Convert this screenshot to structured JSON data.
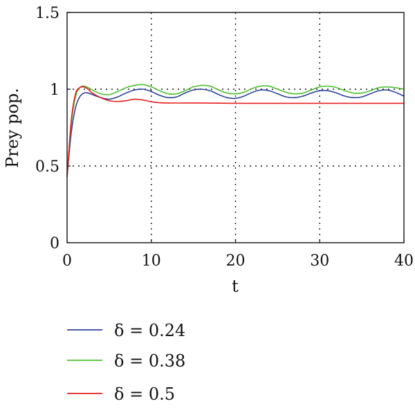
{
  "chart_data": {
    "type": "line",
    "title": "",
    "xlabel": "t",
    "ylabel": "Prey pop.",
    "xlim": [
      0,
      40
    ],
    "ylim": [
      0,
      1.5
    ],
    "xticks": [
      0,
      10,
      20,
      30,
      40
    ],
    "yticks": [
      0,
      0.5,
      1,
      1.5
    ],
    "xtick_labels": [
      "0",
      "10",
      "20",
      "30",
      "40"
    ],
    "ytick_labels": [
      "0",
      "0.5",
      "1",
      "1.5"
    ],
    "grid": true,
    "legend_position": "bottom",
    "series": [
      {
        "name": "δ = 0.24",
        "color": "#2b3f99",
        "x": [
          0,
          0.5,
          1,
          1.5,
          2,
          2.5,
          3,
          4,
          5,
          6,
          7,
          8,
          9,
          10,
          11,
          12,
          13,
          14,
          15,
          16,
          17,
          18,
          19,
          20,
          21,
          22,
          23,
          24,
          25,
          26,
          27,
          28,
          29,
          30,
          31,
          32,
          33,
          34,
          35,
          36,
          37,
          38,
          39,
          40
        ],
        "y": [
          0.43,
          0.72,
          0.88,
          0.95,
          0.975,
          0.975,
          0.965,
          0.945,
          0.935,
          0.95,
          0.975,
          0.995,
          1.0,
          0.985,
          0.96,
          0.945,
          0.95,
          0.975,
          0.995,
          1.0,
          0.99,
          0.965,
          0.945,
          0.94,
          0.955,
          0.98,
          0.995,
          0.99,
          0.97,
          0.95,
          0.945,
          0.955,
          0.975,
          0.99,
          0.99,
          0.975,
          0.955,
          0.945,
          0.95,
          0.97,
          0.99,
          0.995,
          0.98,
          0.955
        ]
      },
      {
        "name": "δ = 0.38",
        "color": "#4cbf2e",
        "x": [
          0,
          0.5,
          1,
          1.5,
          2,
          2.5,
          3,
          4,
          5,
          6,
          7,
          8,
          9,
          10,
          11,
          12,
          13,
          14,
          15,
          16,
          17,
          18,
          19,
          20,
          21,
          22,
          23,
          24,
          25,
          26,
          27,
          28,
          29,
          30,
          31,
          32,
          33,
          34,
          35,
          36,
          37,
          38,
          39,
          40
        ],
        "y": [
          0.43,
          0.78,
          0.95,
          1.01,
          1.02,
          1.01,
          0.995,
          0.97,
          0.965,
          0.985,
          1.01,
          1.025,
          1.03,
          1.015,
          0.99,
          0.97,
          0.97,
          0.99,
          1.015,
          1.025,
          1.02,
          0.995,
          0.975,
          0.97,
          0.98,
          1.005,
          1.02,
          1.02,
          1.0,
          0.98,
          0.97,
          0.975,
          0.995,
          1.015,
          1.02,
          1.01,
          0.99,
          0.975,
          0.975,
          0.99,
          1.01,
          1.015,
          1.01,
          1.0
        ]
      },
      {
        "name": "δ = 0.5",
        "color": "#e61e1e",
        "x": [
          0,
          0.5,
          1,
          1.5,
          2,
          2.5,
          3,
          4,
          5,
          6,
          7,
          8,
          9,
          10,
          11,
          12,
          14,
          16,
          18,
          20,
          22,
          24,
          26,
          28,
          30,
          32,
          34,
          36,
          38,
          40
        ],
        "y": [
          0.43,
          0.8,
          0.97,
          1.01,
          1.015,
          1.0,
          0.975,
          0.945,
          0.925,
          0.92,
          0.925,
          0.935,
          0.93,
          0.918,
          0.912,
          0.91,
          0.91,
          0.91,
          0.909,
          0.908,
          0.908,
          0.908,
          0.908,
          0.908,
          0.908,
          0.908,
          0.908,
          0.908,
          0.908,
          0.908
        ]
      }
    ]
  }
}
